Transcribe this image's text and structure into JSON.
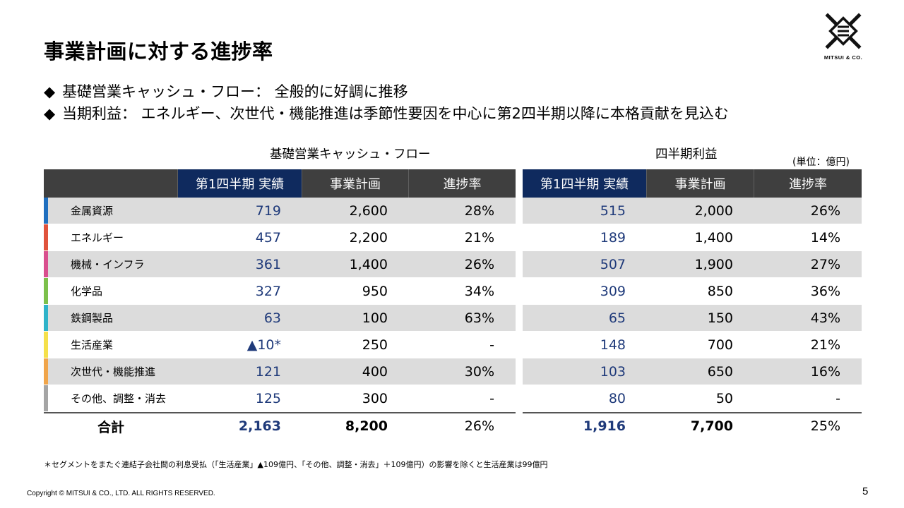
{
  "title": "事業計画に対する進捗率",
  "logo": {
    "text": "MITSUI & CO."
  },
  "bullets": [
    {
      "mark": "◆",
      "text": "基礎営業キャッシュ・フロー： 全般的に好調に推移"
    },
    {
      "mark": "◆",
      "text": "当期利益： エネルギー、次世代・機能推進は季節性要因を中心に第2四半期以降に本格貢献を見込む"
    }
  ],
  "tables": {
    "cf_title": "基礎営業キャッシュ・フロー",
    "pl_title": "四半期利益",
    "unit": "(単位：億円)",
    "headers": [
      "第1四半期 実績",
      "事業計画",
      "進捗率"
    ],
    "rows": [
      {
        "segment": "金属資源",
        "color": "#1f6fbf",
        "cf": [
          "719",
          "2,600",
          "28%"
        ],
        "pl": [
          "515",
          "2,000",
          "26%"
        ]
      },
      {
        "segment": "エネルギー",
        "color": "#e0533c",
        "cf": [
          "457",
          "2,200",
          "21%"
        ],
        "pl": [
          "189",
          "1,400",
          "14%"
        ]
      },
      {
        "segment": "機械・インフラ",
        "color": "#d94f8e",
        "cf": [
          "361",
          "1,400",
          "26%"
        ],
        "pl": [
          "507",
          "1,900",
          "27%"
        ]
      },
      {
        "segment": "化学品",
        "color": "#7cc04b",
        "cf": [
          "327",
          "950",
          "34%"
        ],
        "pl": [
          "309",
          "850",
          "36%"
        ]
      },
      {
        "segment": "鉄鋼製品",
        "color": "#2fb3c9",
        "cf": [
          "63",
          "100",
          "63%"
        ],
        "pl": [
          "65",
          "150",
          "43%"
        ]
      },
      {
        "segment": "生活産業",
        "color": "#f5e04a",
        "cf": [
          "▲10*",
          "250",
          "-"
        ],
        "pl": [
          "148",
          "700",
          "21%"
        ]
      },
      {
        "segment": "次世代・機能推進",
        "color": "#f0a54a",
        "cf": [
          "121",
          "400",
          "30%"
        ],
        "pl": [
          "103",
          "650",
          "16%"
        ]
      },
      {
        "segment": "その他、調整・消去",
        "color": "#a5a5a5",
        "cf": [
          "125",
          "300",
          "-"
        ],
        "pl": [
          "80",
          "50",
          "-"
        ]
      }
    ],
    "total": {
      "label": "合計",
      "cf": [
        "2,163",
        "8,200",
        "26%"
      ],
      "pl": [
        "1,916",
        "7,700",
        "25%"
      ]
    }
  },
  "note": "＊セグメントをまたぐ連結子会社間の利息受払（「生活産業」▲109億円、「その他、調整・消去」＋109億円）の影響を除くと生活産業は99億円",
  "footer": "Copyright © MITSUI & CO., LTD. ALL RIGHTS RESERVED.",
  "page_number": "5",
  "colors": {
    "header_bg": "#3f3f3f",
    "navy_header": "#0f2a5e",
    "value_blue": "#1f3a7a",
    "row_shade": "#dcdcdc"
  }
}
